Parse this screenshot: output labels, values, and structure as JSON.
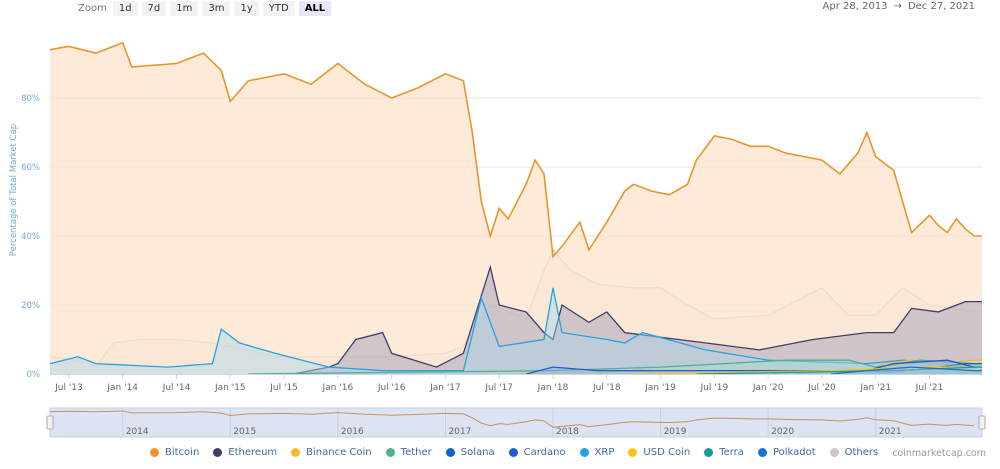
{
  "toolbar": {
    "zoom_label": "Zoom",
    "buttons": [
      "1d",
      "7d",
      "1m",
      "3m",
      "1y",
      "YTD",
      "ALL"
    ],
    "active": "ALL",
    "range_start": "Apr 28, 2013",
    "range_arrow": "→",
    "range_end": "Dec 27, 2021"
  },
  "credit": "coinmarketcap.com",
  "chart_data": {
    "type": "area",
    "ylabel": "Percentage of Total Market Cap",
    "ylim": [
      0,
      100
    ],
    "yticks": [
      "0%",
      "20%",
      "40%",
      "60%",
      "80%"
    ],
    "ytick_values": [
      0,
      20,
      40,
      60,
      80
    ],
    "xlim": [
      "2013-04-28",
      "2021-12-27"
    ],
    "xticks": [
      {
        "label": "Jul '13",
        "date": "2013-07"
      },
      {
        "label": "Jan '14",
        "date": "2014-01"
      },
      {
        "label": "Jul '14",
        "date": "2014-07"
      },
      {
        "label": "Jan '15",
        "date": "2015-01"
      },
      {
        "label": "Jul '15",
        "date": "2015-07"
      },
      {
        "label": "Jan '16",
        "date": "2016-01"
      },
      {
        "label": "Jul '16",
        "date": "2016-07"
      },
      {
        "label": "Jan '17",
        "date": "2017-01"
      },
      {
        "label": "Jul '17",
        "date": "2017-07"
      },
      {
        "label": "Jan '18",
        "date": "2018-01"
      },
      {
        "label": "Jul '18",
        "date": "2018-07"
      },
      {
        "label": "Jan '19",
        "date": "2019-01"
      },
      {
        "label": "Jul '19",
        "date": "2019-07"
      },
      {
        "label": "Jan '20",
        "date": "2020-01"
      },
      {
        "label": "Jul '20",
        "date": "2020-07"
      },
      {
        "label": "Jan '21",
        "date": "2021-01"
      },
      {
        "label": "Jul '21",
        "date": "2021-07"
      }
    ],
    "navigator_ticks": [
      "2014",
      "2015",
      "2016",
      "2017",
      "2018",
      "2019",
      "2020",
      "2021"
    ],
    "grid": true,
    "legend": "bottom",
    "series": [
      {
        "name": "Others",
        "color": "#c8c8c8",
        "fill": "#e4e4e4",
        "points": [
          [
            "2013-04",
            5
          ],
          [
            "2013-08",
            4
          ],
          [
            "2013-10",
            2
          ],
          [
            "2013-12",
            9
          ],
          [
            "2014-03",
            10
          ],
          [
            "2014-07",
            10
          ],
          [
            "2014-11",
            9
          ],
          [
            "2015-01",
            8
          ],
          [
            "2015-06",
            5
          ],
          [
            "2016-01",
            5
          ],
          [
            "2016-07",
            5
          ],
          [
            "2017-01",
            6
          ],
          [
            "2017-03",
            8
          ],
          [
            "2017-06",
            20
          ],
          [
            "2017-10",
            16
          ],
          [
            "2017-12",
            30
          ],
          [
            "2018-01",
            36
          ],
          [
            "2018-03",
            30
          ],
          [
            "2018-06",
            26
          ],
          [
            "2018-10",
            25
          ],
          [
            "2019-01",
            25
          ],
          [
            "2019-04",
            20
          ],
          [
            "2019-07",
            16
          ],
          [
            "2020-01",
            17
          ],
          [
            "2020-07",
            25
          ],
          [
            "2020-10",
            17
          ],
          [
            "2021-01",
            17
          ],
          [
            "2021-04",
            25
          ],
          [
            "2021-07",
            20
          ],
          [
            "2021-12",
            18
          ]
        ]
      },
      {
        "name": "Bitcoin",
        "color": "#e8962c",
        "fill": "#fde3cb",
        "points": [
          [
            "2013-04",
            94
          ],
          [
            "2013-07",
            95
          ],
          [
            "2013-10",
            93
          ],
          [
            "2014-01",
            96
          ],
          [
            "2014-02",
            89
          ],
          [
            "2014-07",
            90
          ],
          [
            "2014-10",
            93
          ],
          [
            "2014-12",
            88
          ],
          [
            "2015-01",
            79
          ],
          [
            "2015-03",
            85
          ],
          [
            "2015-07",
            87
          ],
          [
            "2015-10",
            84
          ],
          [
            "2016-01",
            90
          ],
          [
            "2016-04",
            84
          ],
          [
            "2016-07",
            80
          ],
          [
            "2016-10",
            83
          ],
          [
            "2017-01",
            87
          ],
          [
            "2017-03",
            85
          ],
          [
            "2017-04",
            70
          ],
          [
            "2017-05",
            50
          ],
          [
            "2017-06",
            40
          ],
          [
            "2017-07",
            48
          ],
          [
            "2017-08",
            45
          ],
          [
            "2017-10",
            55
          ],
          [
            "2017-11",
            62
          ],
          [
            "2017-12",
            58
          ],
          [
            "2018-01",
            34
          ],
          [
            "2018-02",
            37
          ],
          [
            "2018-04",
            44
          ],
          [
            "2018-05",
            36
          ],
          [
            "2018-07",
            44
          ],
          [
            "2018-09",
            53
          ],
          [
            "2018-10",
            55
          ],
          [
            "2018-12",
            53
          ],
          [
            "2019-02",
            52
          ],
          [
            "2019-04",
            55
          ],
          [
            "2019-05",
            62
          ],
          [
            "2019-07",
            69
          ],
          [
            "2019-09",
            68
          ],
          [
            "2019-11",
            66
          ],
          [
            "2020-01",
            66
          ],
          [
            "2020-03",
            64
          ],
          [
            "2020-05",
            63
          ],
          [
            "2020-07",
            62
          ],
          [
            "2020-09",
            58
          ],
          [
            "2020-11",
            64
          ],
          [
            "2020-12",
            70
          ],
          [
            "2021-01",
            63
          ],
          [
            "2021-02",
            61
          ],
          [
            "2021-03",
            59
          ],
          [
            "2021-04",
            50
          ],
          [
            "2021-05",
            41
          ],
          [
            "2021-07",
            46
          ],
          [
            "2021-08",
            43
          ],
          [
            "2021-09",
            41
          ],
          [
            "2021-10",
            45
          ],
          [
            "2021-11",
            42
          ],
          [
            "2021-12",
            40
          ]
        ]
      },
      {
        "name": "Ethereum",
        "color": "#3e3e6a",
        "fill": "#9a9ab8",
        "points": [
          [
            "2015-08",
            0
          ],
          [
            "2015-12",
            2
          ],
          [
            "2016-01",
            3
          ],
          [
            "2016-03",
            10
          ],
          [
            "2016-06",
            12
          ],
          [
            "2016-07",
            6
          ],
          [
            "2016-12",
            2
          ],
          [
            "2017-03",
            6
          ],
          [
            "2017-06",
            31
          ],
          [
            "2017-07",
            20
          ],
          [
            "2017-10",
            18
          ],
          [
            "2017-12",
            12
          ],
          [
            "2018-01",
            10
          ],
          [
            "2018-02",
            20
          ],
          [
            "2018-05",
            15
          ],
          [
            "2018-07",
            18
          ],
          [
            "2018-09",
            12
          ],
          [
            "2018-12",
            11
          ],
          [
            "2019-06",
            9
          ],
          [
            "2019-12",
            7
          ],
          [
            "2020-06",
            10
          ],
          [
            "2020-12",
            12
          ],
          [
            "2021-03",
            12
          ],
          [
            "2021-05",
            19
          ],
          [
            "2021-08",
            18
          ],
          [
            "2021-11",
            21
          ],
          [
            "2021-12",
            21
          ]
        ]
      },
      {
        "name": "XRP",
        "color": "#23a3e0",
        "fill": "#a8d8ef",
        "points": [
          [
            "2013-04",
            3
          ],
          [
            "2013-08",
            5
          ],
          [
            "2013-10",
            3
          ],
          [
            "2014-06",
            2
          ],
          [
            "2014-11",
            3
          ],
          [
            "2014-12",
            13
          ],
          [
            "2015-02",
            9
          ],
          [
            "2015-06",
            6
          ],
          [
            "2015-12",
            2
          ],
          [
            "2016-06",
            1
          ],
          [
            "2017-03",
            1
          ],
          [
            "2017-05",
            22
          ],
          [
            "2017-07",
            8
          ],
          [
            "2017-12",
            10
          ],
          [
            "2018-01",
            25
          ],
          [
            "2018-02",
            12
          ],
          [
            "2018-07",
            10
          ],
          [
            "2018-09",
            9
          ],
          [
            "2018-11",
            12
          ],
          [
            "2019-06",
            7
          ],
          [
            "2020-01",
            4
          ],
          [
            "2020-12",
            3
          ],
          [
            "2021-04",
            4
          ],
          [
            "2021-12",
            2
          ]
        ]
      },
      {
        "name": "Binance Coin",
        "color": "#f3ba2f",
        "fill": "#f8dd97",
        "points": [
          [
            "2017-08",
            0
          ],
          [
            "2019-01",
            1
          ],
          [
            "2020-12",
            1
          ],
          [
            "2021-02",
            3
          ],
          [
            "2021-05",
            4
          ],
          [
            "2021-08",
            3
          ],
          [
            "2021-12",
            4
          ]
        ]
      },
      {
        "name": "Tether",
        "color": "#50af95",
        "fill": "#a8d7ca",
        "points": [
          [
            "2015-03",
            0
          ],
          [
            "2018-01",
            1
          ],
          [
            "2019-01",
            2
          ],
          [
            "2020-03",
            4
          ],
          [
            "2020-10",
            4
          ],
          [
            "2021-01",
            2
          ],
          [
            "2021-06",
            4
          ],
          [
            "2021-12",
            3
          ]
        ]
      },
      {
        "name": "Solana",
        "color": "#0b66c3",
        "fill": "#85b3e1",
        "points": [
          [
            "2020-04",
            0
          ],
          [
            "2021-01",
            0
          ],
          [
            "2021-08",
            2
          ],
          [
            "2021-11",
            3
          ],
          [
            "2021-12",
            3
          ]
        ]
      },
      {
        "name": "Cardano",
        "color": "#1f5bd0",
        "fill": "#8fade8",
        "points": [
          [
            "2017-10",
            0
          ],
          [
            "2018-01",
            2
          ],
          [
            "2018-06",
            1
          ],
          [
            "2020-12",
            1
          ],
          [
            "2021-03",
            3
          ],
          [
            "2021-09",
            4
          ],
          [
            "2021-12",
            2
          ]
        ]
      },
      {
        "name": "USD Coin",
        "color": "#f5c518",
        "fill": "#fae28b",
        "points": [
          [
            "2018-10",
            0
          ],
          [
            "2020-08",
            1
          ],
          [
            "2021-06",
            2
          ],
          [
            "2021-12",
            2
          ]
        ]
      },
      {
        "name": "Terra",
        "color": "#1a9aa0",
        "fill": "#8ccdd0",
        "points": [
          [
            "2019-05",
            0
          ],
          [
            "2021-03",
            1
          ],
          [
            "2021-12",
            2
          ]
        ]
      },
      {
        "name": "Polkadot",
        "color": "#1b6fd1",
        "fill": "#8db7e8",
        "points": [
          [
            "2020-08",
            0
          ],
          [
            "2020-12",
            1
          ],
          [
            "2021-05",
            2
          ],
          [
            "2021-12",
            1
          ]
        ]
      }
    ],
    "legend_order": [
      "Bitcoin",
      "Ethereum",
      "Binance Coin",
      "Tether",
      "Solana",
      "Cardano",
      "XRP",
      "USD Coin",
      "Terra",
      "Polkadot",
      "Others"
    ]
  }
}
